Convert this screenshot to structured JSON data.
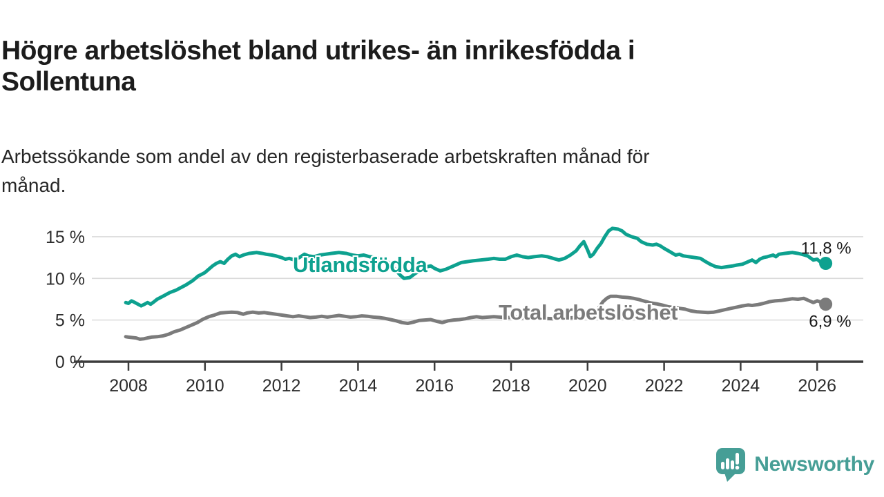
{
  "header": {
    "title": "Högre arbetslöshet bland utrikes- än inrikesfödda i\nSollentuna",
    "subtitle": "Arbetssökande som andel av den registerbaserade arbetskraften månad för\nmånad."
  },
  "branding": {
    "name": "Newsworthy",
    "color": "#469e96"
  },
  "chart_data": {
    "type": "line",
    "title": "Högre arbetslöshet bland utrikes- än inrikesfödda i Sollentuna",
    "subtitle": "Arbetssökande som andel av den registerbaserade arbetskraften månad för månad.",
    "grid": "horizontal",
    "legend": "inline-labels",
    "x_axis": {
      "tick_years": [
        2008,
        2010,
        2012,
        2014,
        2016,
        2018,
        2020,
        2022,
        2024,
        2026
      ],
      "range": [
        2007.9,
        2026.2
      ]
    },
    "y_axis": {
      "unit": "%",
      "range": [
        0,
        16.8
      ],
      "ticks": [
        {
          "value": 0,
          "label": "0 %"
        },
        {
          "value": 5,
          "label": "5 %"
        },
        {
          "value": 10,
          "label": "10 %"
        },
        {
          "value": 15,
          "label": "15 %"
        }
      ]
    },
    "series": [
      {
        "id": "utlandsfodda",
        "name": "Utlandsfödda",
        "color": "#0da18f",
        "end_value": 11.8,
        "end_label": "11,8 %",
        "points": [
          [
            2007.93,
            7.1
          ],
          [
            2008.0,
            7.0
          ],
          [
            2008.08,
            7.3
          ],
          [
            2008.17,
            7.1
          ],
          [
            2008.25,
            6.9
          ],
          [
            2008.33,
            6.7
          ],
          [
            2008.42,
            6.9
          ],
          [
            2008.5,
            7.1
          ],
          [
            2008.58,
            6.9
          ],
          [
            2008.67,
            7.2
          ],
          [
            2008.75,
            7.5
          ],
          [
            2008.92,
            7.9
          ],
          [
            2009.08,
            8.3
          ],
          [
            2009.25,
            8.6
          ],
          [
            2009.33,
            8.8
          ],
          [
            2009.5,
            9.2
          ],
          [
            2009.67,
            9.7
          ],
          [
            2009.75,
            10.0
          ],
          [
            2009.83,
            10.3
          ],
          [
            2009.92,
            10.5
          ],
          [
            2010.0,
            10.7
          ],
          [
            2010.1,
            11.1
          ],
          [
            2010.2,
            11.5
          ],
          [
            2010.3,
            11.8
          ],
          [
            2010.4,
            12.0
          ],
          [
            2010.5,
            11.8
          ],
          [
            2010.6,
            12.3
          ],
          [
            2010.7,
            12.7
          ],
          [
            2010.8,
            12.9
          ],
          [
            2010.9,
            12.6
          ],
          [
            2011.0,
            12.8
          ],
          [
            2011.15,
            13.0
          ],
          [
            2011.35,
            13.1
          ],
          [
            2011.5,
            13.0
          ],
          [
            2011.6,
            12.9
          ],
          [
            2011.75,
            12.8
          ],
          [
            2011.85,
            12.7
          ],
          [
            2012.0,
            12.5
          ],
          [
            2012.1,
            12.3
          ],
          [
            2012.2,
            12.4
          ],
          [
            2012.35,
            12.2
          ],
          [
            2012.5,
            12.6
          ],
          [
            2012.6,
            12.9
          ],
          [
            2012.7,
            12.7
          ],
          [
            2012.85,
            12.6
          ],
          [
            2013.0,
            12.8
          ],
          [
            2013.15,
            12.9
          ],
          [
            2013.3,
            13.0
          ],
          [
            2013.5,
            13.1
          ],
          [
            2013.7,
            13.0
          ],
          [
            2013.85,
            12.8
          ],
          [
            2014.0,
            12.7
          ],
          [
            2014.15,
            12.8
          ],
          [
            2014.3,
            12.6
          ],
          [
            2014.5,
            12.5
          ],
          [
            2014.65,
            12.3
          ],
          [
            2014.8,
            11.9
          ],
          [
            2014.95,
            11.2
          ],
          [
            2015.1,
            10.4
          ],
          [
            2015.2,
            10.0
          ],
          [
            2015.35,
            10.1
          ],
          [
            2015.5,
            10.6
          ],
          [
            2015.65,
            11.0
          ],
          [
            2015.8,
            11.4
          ],
          [
            2015.9,
            11.5
          ],
          [
            2016.0,
            11.2
          ],
          [
            2016.15,
            10.9
          ],
          [
            2016.3,
            11.1
          ],
          [
            2016.5,
            11.5
          ],
          [
            2016.7,
            11.9
          ],
          [
            2016.85,
            12.0
          ],
          [
            2017.0,
            12.1
          ],
          [
            2017.2,
            12.2
          ],
          [
            2017.4,
            12.3
          ],
          [
            2017.55,
            12.4
          ],
          [
            2017.7,
            12.3
          ],
          [
            2017.85,
            12.3
          ],
          [
            2018.0,
            12.6
          ],
          [
            2018.15,
            12.8
          ],
          [
            2018.3,
            12.6
          ],
          [
            2018.45,
            12.5
          ],
          [
            2018.6,
            12.6
          ],
          [
            2018.8,
            12.7
          ],
          [
            2018.95,
            12.6
          ],
          [
            2019.1,
            12.4
          ],
          [
            2019.25,
            12.2
          ],
          [
            2019.4,
            12.4
          ],
          [
            2019.55,
            12.8
          ],
          [
            2019.7,
            13.3
          ],
          [
            2019.8,
            13.9
          ],
          [
            2019.9,
            14.4
          ],
          [
            2020.0,
            13.4
          ],
          [
            2020.07,
            12.6
          ],
          [
            2020.15,
            12.9
          ],
          [
            2020.25,
            13.6
          ],
          [
            2020.35,
            14.2
          ],
          [
            2020.45,
            15.0
          ],
          [
            2020.55,
            15.7
          ],
          [
            2020.65,
            16.0
          ],
          [
            2020.8,
            15.9
          ],
          [
            2020.9,
            15.7
          ],
          [
            2021.0,
            15.3
          ],
          [
            2021.15,
            15.0
          ],
          [
            2021.3,
            14.8
          ],
          [
            2021.4,
            14.4
          ],
          [
            2021.55,
            14.1
          ],
          [
            2021.7,
            14.0
          ],
          [
            2021.8,
            14.1
          ],
          [
            2021.9,
            13.9
          ],
          [
            2022.0,
            13.6
          ],
          [
            2022.15,
            13.2
          ],
          [
            2022.3,
            12.8
          ],
          [
            2022.4,
            12.9
          ],
          [
            2022.5,
            12.7
          ],
          [
            2022.65,
            12.6
          ],
          [
            2022.8,
            12.5
          ],
          [
            2022.95,
            12.4
          ],
          [
            2023.05,
            12.1
          ],
          [
            2023.2,
            11.7
          ],
          [
            2023.35,
            11.4
          ],
          [
            2023.5,
            11.3
          ],
          [
            2023.65,
            11.4
          ],
          [
            2023.8,
            11.5
          ],
          [
            2023.9,
            11.6
          ],
          [
            2024.05,
            11.7
          ],
          [
            2024.2,
            12.0
          ],
          [
            2024.3,
            12.2
          ],
          [
            2024.4,
            11.9
          ],
          [
            2024.5,
            12.3
          ],
          [
            2024.6,
            12.5
          ],
          [
            2024.7,
            12.6
          ],
          [
            2024.85,
            12.8
          ],
          [
            2024.92,
            12.6
          ],
          [
            2025.0,
            12.9
          ],
          [
            2025.15,
            13.0
          ],
          [
            2025.35,
            13.1
          ],
          [
            2025.5,
            13.0
          ],
          [
            2025.6,
            12.9
          ],
          [
            2025.75,
            12.7
          ],
          [
            2025.9,
            12.2
          ],
          [
            2026.0,
            12.3
          ],
          [
            2026.1,
            11.9
          ],
          [
            2026.17,
            11.8
          ]
        ]
      },
      {
        "id": "total",
        "name": "Total arbetslöshet",
        "color": "#7b7b7b",
        "end_value": 6.9,
        "end_label": "6,9 %",
        "points": [
          [
            2007.93,
            3.0
          ],
          [
            2008.0,
            2.95
          ],
          [
            2008.1,
            2.9
          ],
          [
            2008.2,
            2.85
          ],
          [
            2008.3,
            2.7
          ],
          [
            2008.4,
            2.75
          ],
          [
            2008.5,
            2.85
          ],
          [
            2008.6,
            2.95
          ],
          [
            2008.75,
            3.0
          ],
          [
            2008.9,
            3.1
          ],
          [
            2009.05,
            3.3
          ],
          [
            2009.2,
            3.6
          ],
          [
            2009.35,
            3.8
          ],
          [
            2009.5,
            4.1
          ],
          [
            2009.65,
            4.4
          ],
          [
            2009.8,
            4.7
          ],
          [
            2009.95,
            5.1
          ],
          [
            2010.1,
            5.4
          ],
          [
            2010.25,
            5.6
          ],
          [
            2010.4,
            5.85
          ],
          [
            2010.55,
            5.9
          ],
          [
            2010.7,
            5.95
          ],
          [
            2010.85,
            5.9
          ],
          [
            2011.0,
            5.7
          ],
          [
            2011.1,
            5.85
          ],
          [
            2011.25,
            5.95
          ],
          [
            2011.4,
            5.85
          ],
          [
            2011.55,
            5.9
          ],
          [
            2011.7,
            5.8
          ],
          [
            2011.85,
            5.7
          ],
          [
            2012.0,
            5.6
          ],
          [
            2012.15,
            5.5
          ],
          [
            2012.3,
            5.4
          ],
          [
            2012.45,
            5.5
          ],
          [
            2012.6,
            5.4
          ],
          [
            2012.75,
            5.3
          ],
          [
            2012.9,
            5.35
          ],
          [
            2013.05,
            5.45
          ],
          [
            2013.2,
            5.35
          ],
          [
            2013.35,
            5.45
          ],
          [
            2013.5,
            5.55
          ],
          [
            2013.65,
            5.45
          ],
          [
            2013.8,
            5.35
          ],
          [
            2013.95,
            5.4
          ],
          [
            2014.1,
            5.5
          ],
          [
            2014.25,
            5.45
          ],
          [
            2014.4,
            5.35
          ],
          [
            2014.55,
            5.3
          ],
          [
            2014.7,
            5.2
          ],
          [
            2014.85,
            5.05
          ],
          [
            2015.0,
            4.9
          ],
          [
            2015.15,
            4.7
          ],
          [
            2015.3,
            4.6
          ],
          [
            2015.45,
            4.75
          ],
          [
            2015.6,
            4.95
          ],
          [
            2015.75,
            5.0
          ],
          [
            2015.9,
            5.05
          ],
          [
            2016.05,
            4.85
          ],
          [
            2016.2,
            4.7
          ],
          [
            2016.35,
            4.9
          ],
          [
            2016.5,
            5.0
          ],
          [
            2016.65,
            5.05
          ],
          [
            2016.8,
            5.15
          ],
          [
            2016.95,
            5.3
          ],
          [
            2017.1,
            5.4
          ],
          [
            2017.25,
            5.3
          ],
          [
            2017.4,
            5.35
          ],
          [
            2017.55,
            5.4
          ],
          [
            2017.7,
            5.35
          ],
          [
            2017.85,
            5.3
          ],
          [
            2018.0,
            5.3
          ],
          [
            2018.15,
            5.35
          ],
          [
            2018.3,
            5.25
          ],
          [
            2018.5,
            5.2
          ],
          [
            2018.7,
            5.25
          ],
          [
            2018.9,
            5.2
          ],
          [
            2019.1,
            5.15
          ],
          [
            2019.3,
            5.2
          ],
          [
            2019.5,
            5.25
          ],
          [
            2019.7,
            5.3
          ],
          [
            2019.85,
            5.4
          ],
          [
            2020.0,
            5.35
          ],
          [
            2020.1,
            5.3
          ],
          [
            2020.2,
            5.7
          ],
          [
            2020.3,
            6.5
          ],
          [
            2020.4,
            7.2
          ],
          [
            2020.5,
            7.6
          ],
          [
            2020.6,
            7.85
          ],
          [
            2020.75,
            7.85
          ],
          [
            2020.9,
            7.75
          ],
          [
            2021.05,
            7.7
          ],
          [
            2021.2,
            7.6
          ],
          [
            2021.35,
            7.45
          ],
          [
            2021.5,
            7.25
          ],
          [
            2021.65,
            7.05
          ],
          [
            2021.8,
            6.95
          ],
          [
            2021.95,
            6.8
          ],
          [
            2022.1,
            6.6
          ],
          [
            2022.25,
            6.5
          ],
          [
            2022.4,
            6.4
          ],
          [
            2022.55,
            6.3
          ],
          [
            2022.7,
            6.1
          ],
          [
            2022.85,
            6.0
          ],
          [
            2023.0,
            5.95
          ],
          [
            2023.15,
            5.9
          ],
          [
            2023.3,
            5.95
          ],
          [
            2023.45,
            6.1
          ],
          [
            2023.6,
            6.25
          ],
          [
            2023.75,
            6.4
          ],
          [
            2023.9,
            6.55
          ],
          [
            2024.05,
            6.7
          ],
          [
            2024.2,
            6.8
          ],
          [
            2024.3,
            6.75
          ],
          [
            2024.45,
            6.85
          ],
          [
            2024.6,
            7.0
          ],
          [
            2024.75,
            7.2
          ],
          [
            2024.9,
            7.3
          ],
          [
            2025.05,
            7.35
          ],
          [
            2025.2,
            7.45
          ],
          [
            2025.35,
            7.55
          ],
          [
            2025.5,
            7.5
          ],
          [
            2025.65,
            7.6
          ],
          [
            2025.8,
            7.3
          ],
          [
            2025.9,
            7.1
          ],
          [
            2026.0,
            7.3
          ],
          [
            2026.1,
            7.15
          ],
          [
            2026.17,
            6.9
          ]
        ]
      }
    ]
  }
}
